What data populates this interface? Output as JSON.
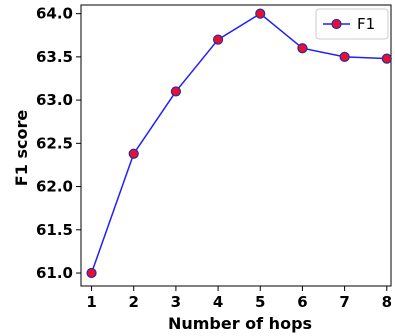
{
  "chart_data": {
    "type": "line",
    "title": "",
    "xlabel": "Number of hops",
    "ylabel": "F1 score",
    "x": [
      1,
      2,
      3,
      4,
      5,
      6,
      7,
      8
    ],
    "xlim": [
      0.75,
      8.1
    ],
    "ylim": [
      60.85,
      64.1
    ],
    "xticks": [
      "1",
      "2",
      "3",
      "4",
      "5",
      "6",
      "7",
      "8"
    ],
    "yticks": [
      "61.0",
      "61.5",
      "62.0",
      "62.5",
      "63.0",
      "63.5",
      "64.0"
    ],
    "series": [
      {
        "name": "F1",
        "values": [
          61.0,
          62.38,
          63.1,
          63.7,
          64.0,
          63.6,
          63.5,
          63.48
        ],
        "line_color": "#1f1fff",
        "marker_color": "#e8112d",
        "marker_edge": "#2a2aa8"
      }
    ],
    "grid": false,
    "legend": "top-right"
  }
}
